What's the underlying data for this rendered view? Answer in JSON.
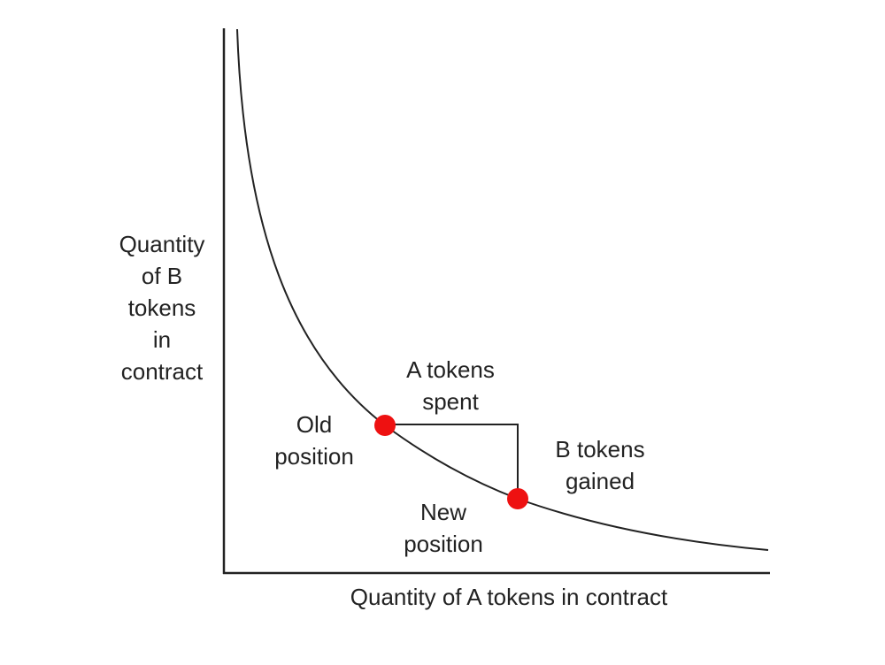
{
  "axes": {
    "x_label": "Quantity of A tokens in contract",
    "y_label_lines": [
      "Quantity",
      "of B",
      "tokens",
      "in",
      "contract"
    ]
  },
  "annotations": {
    "old_position": [
      "Old",
      "position"
    ],
    "new_position": [
      "New",
      "position"
    ],
    "a_tokens_spent": [
      "A tokens",
      "spent"
    ],
    "b_tokens_gained": [
      "B tokens",
      "gained"
    ]
  },
  "colors": {
    "point": "#ee1111",
    "line": "#222222"
  }
}
